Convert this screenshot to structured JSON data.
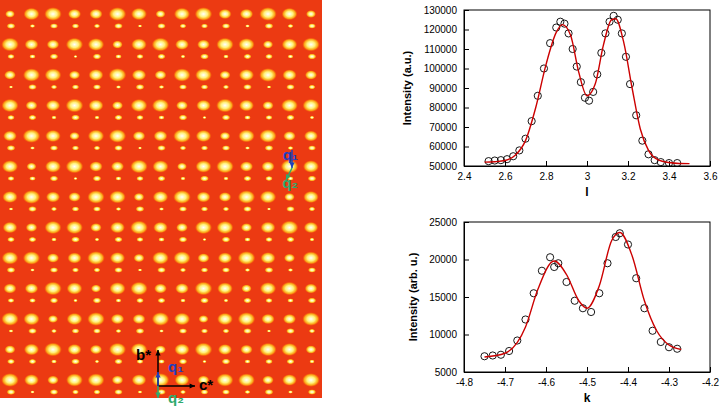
{
  "chart_data": [
    {
      "type": "image",
      "annotations": [
        {
          "text": "q₁",
          "color": "#1f3fbf"
        },
        {
          "text": "q₂",
          "color": "#2eaa6e"
        },
        {
          "text": "b*",
          "color": "#000000"
        },
        {
          "text": "c*",
          "color": "#000000"
        },
        {
          "text": "q₁",
          "color": "#1f3fbf"
        },
        {
          "text": "q₂",
          "color": "#2eaa6e"
        }
      ]
    },
    {
      "type": "scatter",
      "x_label": "l",
      "y_label": "Intensity (a.u.)",
      "xlim": [
        2.4,
        3.6
      ],
      "xticks": [
        2.4,
        2.6,
        2.8,
        3,
        3.2,
        3.4,
        3.6
      ],
      "ylim": [
        50000,
        130000
      ],
      "yticks": [
        50000,
        60000,
        70000,
        80000,
        90000,
        100000,
        110000,
        120000,
        130000
      ],
      "grid": false,
      "series": [
        {
          "type": "scatter",
          "marker": "circle",
          "color": "#000000",
          "x": [
            2.52,
            2.55,
            2.58,
            2.61,
            2.64,
            2.67,
            2.7,
            2.73,
            2.76,
            2.79,
            2.82,
            2.85,
            2.87,
            2.89,
            2.91,
            2.93,
            2.95,
            2.97,
            2.99,
            3.01,
            3.03,
            3.05,
            3.07,
            3.09,
            3.11,
            3.13,
            3.15,
            3.17,
            3.19,
            3.21,
            3.24,
            3.27,
            3.3,
            3.33,
            3.36,
            3.4,
            3.44
          ],
          "values": [
            52500,
            52800,
            53000,
            53500,
            55000,
            58000,
            64000,
            73000,
            86000,
            100000,
            113000,
            121000,
            124000,
            123000,
            118000,
            110000,
            101000,
            93000,
            85000,
            83500,
            88000,
            97000,
            108000,
            118000,
            124000,
            127000,
            125000,
            118000,
            106000,
            92000,
            76000,
            63000,
            56000,
            53000,
            52000,
            51500,
            51500
          ]
        },
        {
          "type": "line",
          "line_style": "solid",
          "color": "#cc0000",
          "x": [
            2.5,
            2.55,
            2.6,
            2.65,
            2.7,
            2.75,
            2.8,
            2.85,
            2.88,
            2.92,
            2.96,
            3.0,
            3.04,
            3.08,
            3.12,
            3.14,
            3.18,
            3.22,
            3.26,
            3.3,
            3.35,
            3.4,
            3.45,
            3.5
          ],
          "values": [
            52000,
            52200,
            52800,
            55500,
            63000,
            80000,
            102000,
            118500,
            122500,
            117000,
            98000,
            86000,
            92000,
            112000,
            125000,
            125500,
            113000,
            90000,
            69000,
            58000,
            53000,
            51800,
            51300,
            51200
          ]
        }
      ]
    },
    {
      "type": "scatter",
      "x_label": "k",
      "y_label": "Intensity (arb. u.)",
      "xlim": [
        -4.8,
        -4.2
      ],
      "xticks": [
        -4.8,
        -4.7,
        -4.6,
        -4.5,
        -4.4,
        -4.3,
        -4.2
      ],
      "ylim": [
        5000,
        25000
      ],
      "yticks": [
        5000,
        10000,
        15000,
        20000,
        25000
      ],
      "grid": false,
      "series": [
        {
          "type": "scatter",
          "marker": "circle",
          "color": "#000000",
          "x": [
            -4.75,
            -4.73,
            -4.71,
            -4.69,
            -4.67,
            -4.65,
            -4.63,
            -4.61,
            -4.59,
            -4.58,
            -4.57,
            -4.55,
            -4.53,
            -4.51,
            -4.49,
            -4.47,
            -4.45,
            -4.43,
            -4.42,
            -4.4,
            -4.38,
            -4.36,
            -4.34,
            -4.32,
            -4.3,
            -4.28
          ],
          "values": [
            7100,
            7200,
            7300,
            7800,
            9200,
            12000,
            15500,
            18500,
            20300,
            19000,
            19500,
            17000,
            14500,
            13500,
            13000,
            15500,
            19500,
            23000,
            23500,
            22000,
            17500,
            13500,
            10500,
            9000,
            8300,
            8100
          ]
        },
        {
          "type": "line",
          "line_style": "solid",
          "color": "#cc0000",
          "x": [
            -4.75,
            -4.7,
            -4.65,
            -4.62,
            -4.58,
            -4.55,
            -4.52,
            -4.5,
            -4.47,
            -4.44,
            -4.42,
            -4.39,
            -4.36,
            -4.33,
            -4.3,
            -4.27
          ],
          "values": [
            7000,
            7500,
            11000,
            16000,
            19800,
            18000,
            14500,
            13500,
            16500,
            22500,
            23600,
            20500,
            14500,
            10500,
            8600,
            8000
          ]
        }
      ]
    }
  ]
}
